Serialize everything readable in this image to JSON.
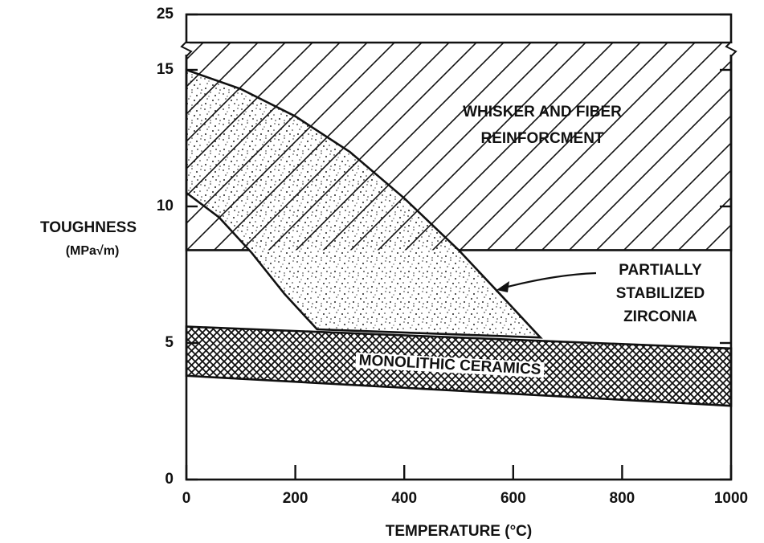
{
  "chart_data": {
    "type": "region",
    "xlabel": "TEMPERATURE (°C)",
    "ylabel": [
      "TOUGHNESS",
      "(MPa√m)"
    ],
    "xlim": [
      0,
      1000
    ],
    "ylim": [
      0,
      25
    ],
    "ybreak": 16,
    "xticks": [
      0,
      200,
      400,
      600,
      800,
      1000
    ],
    "yticks": [
      0,
      5,
      10,
      15,
      25
    ],
    "regions": [
      {
        "label": [
          "WHISKER AND FIBER",
          "REINFORCMENT"
        ],
        "pattern": "hatch",
        "x": [
          0,
          1000,
          1000,
          0
        ],
        "y": [
          8.4,
          8.4,
          16,
          16
        ]
      },
      {
        "label": [
          "PARTIALLY",
          "STABILIZED",
          "ZIRCONIA"
        ],
        "pattern": "stipple",
        "x": [
          0,
          100,
          200,
          300,
          400,
          500,
          580,
          650,
          240,
          180,
          120,
          60,
          0
        ],
        "y": [
          15,
          14.3,
          13.3,
          12,
          10.3,
          8.4,
          6.7,
          5.2,
          5.5,
          6.8,
          8.3,
          9.6,
          10.5
        ]
      },
      {
        "label": [
          "MONOLITHIC CERAMICS"
        ],
        "pattern": "crosshatch",
        "x": [
          0,
          1000,
          1000,
          0
        ],
        "y": [
          5.6,
          4.8,
          2.7,
          3.8
        ]
      }
    ]
  }
}
